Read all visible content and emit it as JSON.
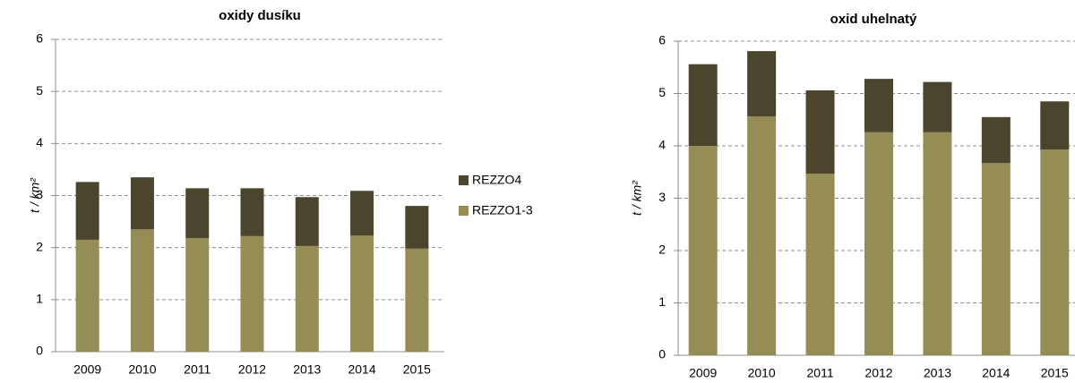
{
  "chart_data": [
    {
      "type": "bar",
      "stacked": true,
      "title": "oxidy dusíku",
      "y_label": "t / km²",
      "categories": [
        "2009",
        "2010",
        "2011",
        "2012",
        "2013",
        "2014",
        "2015"
      ],
      "series": [
        {
          "name": "REZZO1-3",
          "color": "#968c56",
          "values": [
            2.15,
            2.35,
            2.18,
            2.22,
            2.03,
            2.23,
            1.98
          ]
        },
        {
          "name": "REZZO4",
          "color": "#4b452e",
          "values": [
            1.11,
            1.0,
            0.96,
            0.92,
            0.94,
            0.86,
            0.82
          ]
        }
      ],
      "ylim": [
        0,
        6
      ],
      "yticks": [
        0,
        1,
        2,
        3,
        4,
        5,
        6
      ],
      "grid": true,
      "legend": "right"
    },
    {
      "type": "bar",
      "stacked": true,
      "title": "oxid uhelnatý",
      "y_label": "t / km²",
      "categories": [
        "2009",
        "2010",
        "2011",
        "2012",
        "2013",
        "2014",
        "2015"
      ],
      "series": [
        {
          "color": "#968c56",
          "values": [
            4.0,
            4.56,
            3.47,
            4.26,
            4.26,
            3.67,
            3.93
          ]
        },
        {
          "color": "#4b452e",
          "values": [
            1.56,
            1.25,
            1.59,
            1.02,
            0.96,
            0.88,
            0.92
          ]
        }
      ],
      "ylim": [
        0,
        6
      ],
      "yticks": [
        0,
        1,
        2,
        3,
        4,
        5,
        6
      ],
      "grid": true
    }
  ]
}
